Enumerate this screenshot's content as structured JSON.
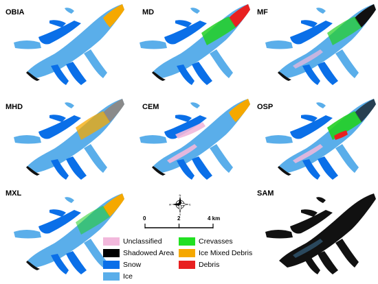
{
  "panels": [
    {
      "label": "OBIA"
    },
    {
      "label": "MD"
    },
    {
      "label": "MF"
    },
    {
      "label": "MHD"
    },
    {
      "label": "CEM"
    },
    {
      "label": "OSP"
    },
    {
      "label": "MXL"
    },
    {
      "label": "SAM"
    }
  ],
  "legend": {
    "items": [
      {
        "label": "Unclassified",
        "color": "#f2b8dc"
      },
      {
        "label": "Crevasses",
        "color": "#22e022"
      },
      {
        "label": "Shadowed Area",
        "color": "#000000"
      },
      {
        "label": "Ice Mixed Debris",
        "color": "#f5a800"
      },
      {
        "label": "Snow",
        "color": "#0a6fe8"
      },
      {
        "label": "Debris",
        "color": "#e82020"
      },
      {
        "label": "Ice",
        "color": "#5aaeea"
      }
    ]
  },
  "scale_bar": {
    "ticks": [
      "0",
      "2",
      "4 km"
    ]
  },
  "compass": {
    "n": "N",
    "s": "S",
    "e": "E",
    "w": "W"
  },
  "colors": {
    "ice": "#5aaeea",
    "snow": "#0a6fe8",
    "shadow": "#111111",
    "crevasses": "#22d022",
    "imd": "#f5a800",
    "debris": "#e82020",
    "unclassified": "#f2b8dc",
    "gray": "#8a8a8a"
  }
}
